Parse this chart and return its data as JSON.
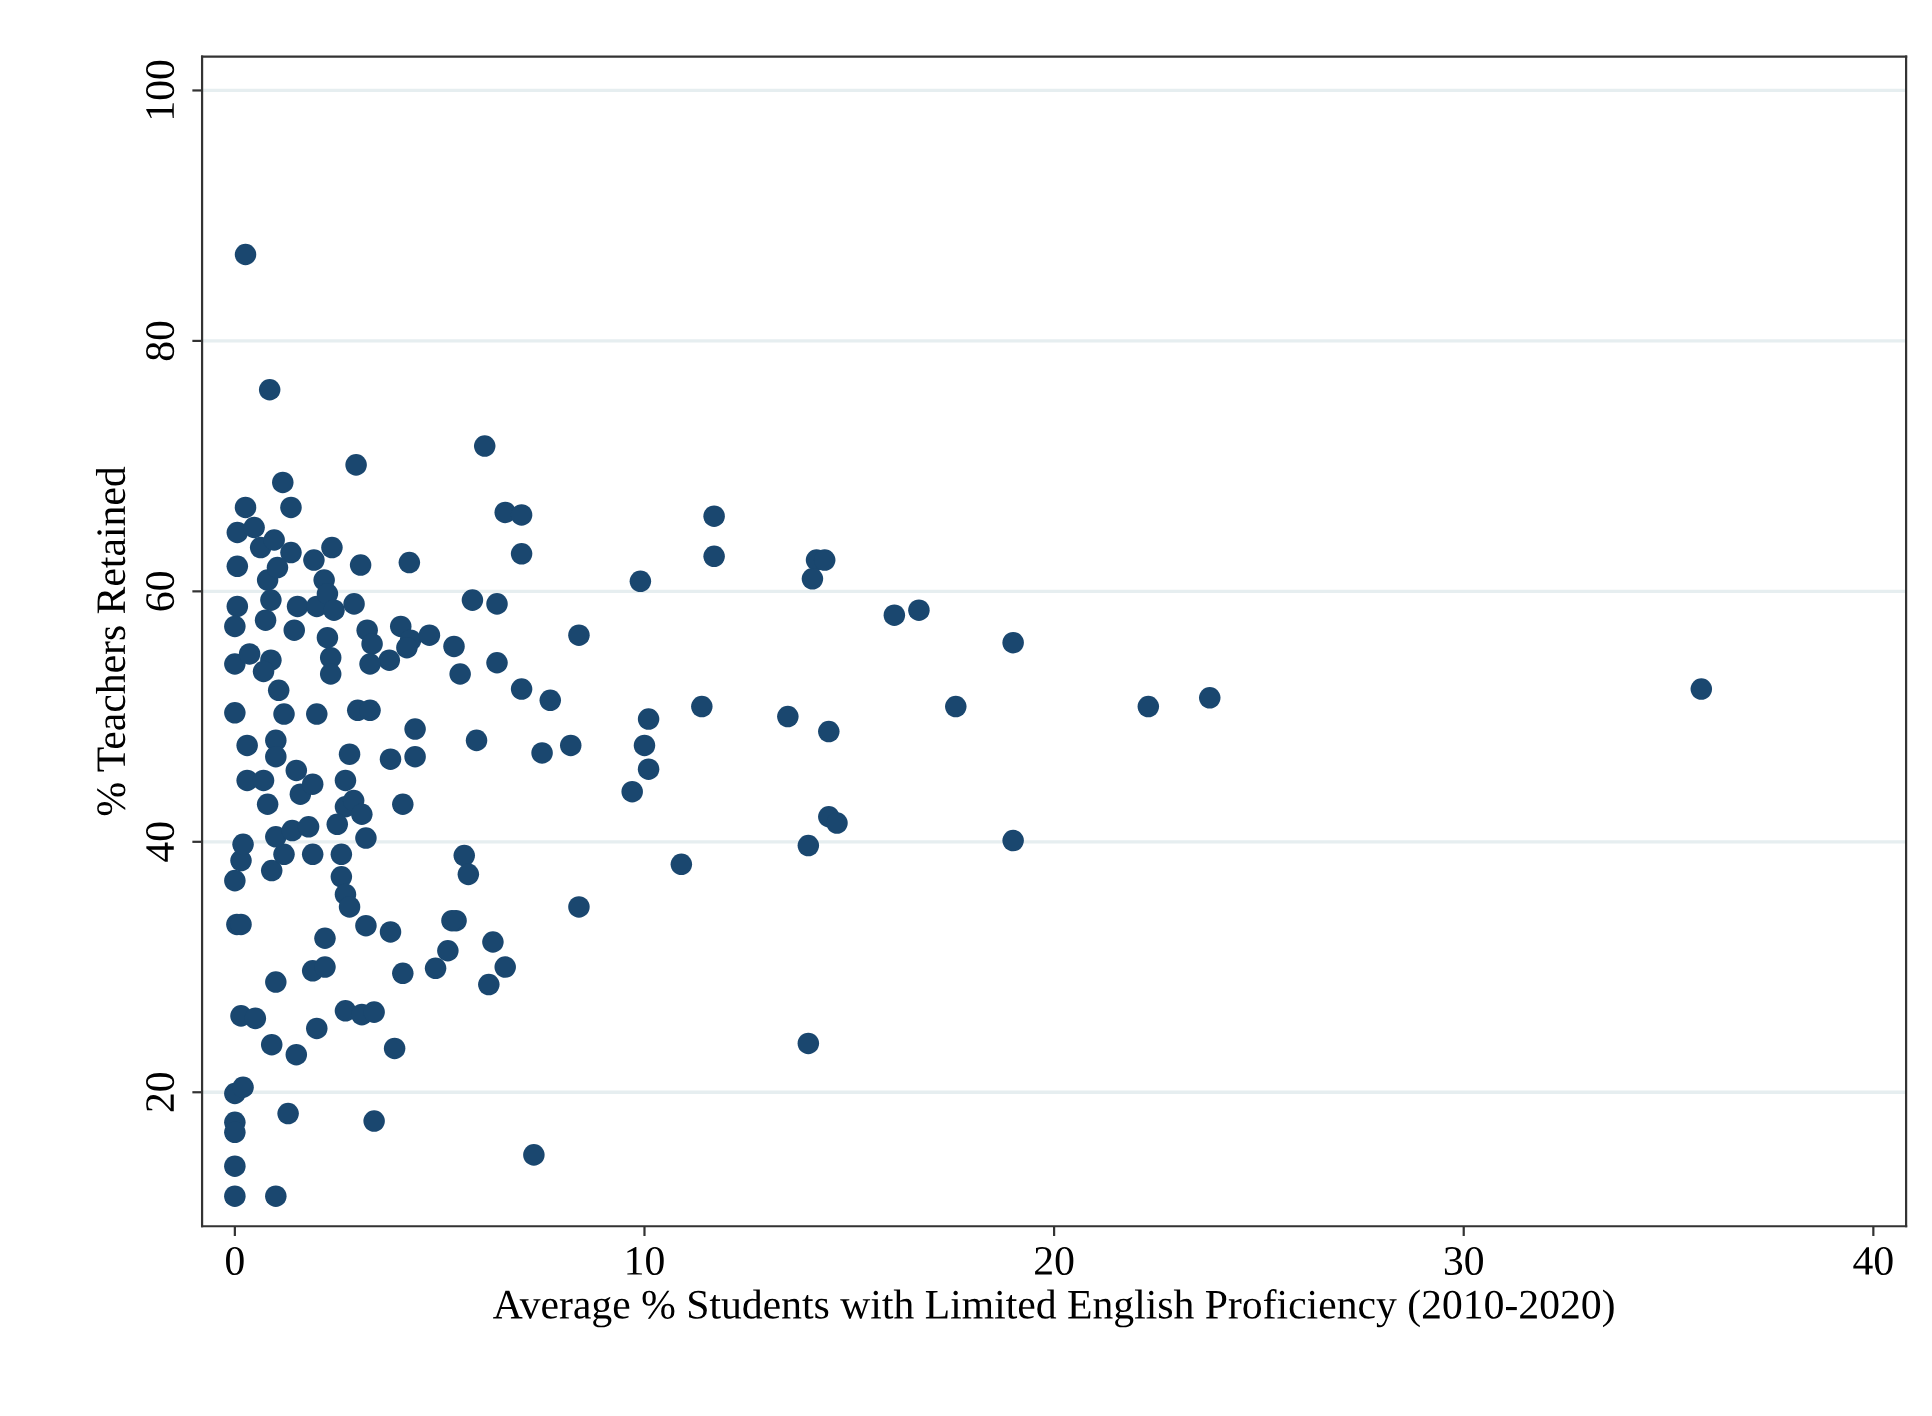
{
  "chart_data": {
    "type": "scatter",
    "xlabel": "Average % Students with Limited English Proficiency (2010-2020)",
    "ylabel": "% Teachers Retained",
    "xlim": [
      -0.8,
      40.8
    ],
    "ylim": [
      9.3,
      102.7
    ],
    "xticks": [
      0,
      10,
      20,
      30,
      40
    ],
    "yticks": [
      20,
      40,
      60,
      80,
      100
    ],
    "grid": "y",
    "marker": "circle",
    "series": [
      {
        "color": "#1a476f",
        "x": [
          0.26,
          0.85,
          2.96,
          1.17,
          1.37,
          0.26,
          0.06,
          0.47,
          0.63,
          0.96,
          1.37,
          0.06,
          0.8,
          1.04,
          1.93,
          2.37,
          3.07,
          4.26,
          2.18,
          0.88,
          0.06,
          0,
          0.75,
          1.53,
          2.0,
          2.26,
          2.42,
          2.91,
          1.45,
          2.26,
          3.23,
          4.05,
          4.29,
          4.75,
          5.35,
          0,
          0.36,
          0.88,
          0.7,
          1.07,
          2.34,
          3.35,
          3.77,
          4.2,
          2.34,
          3.3,
          5.5,
          0,
          6.1,
          6.6,
          7.0,
          7.0,
          11.7,
          11.7,
          14.2,
          14.4,
          14.1,
          9.9,
          5.8,
          6.4,
          8.4,
          6.4,
          7.0,
          7.7,
          5.9,
          7.5,
          8.2,
          10.1,
          10.0,
          10.1,
          9.7,
          11.4,
          13.5,
          14.5,
          14.5,
          14.7,
          16.1,
          16.7,
          19.0,
          17.6,
          22.3,
          23.8,
          35.8,
          19.0,
          5.6,
          5.7,
          5.4,
          6.3,
          6.6,
          6.2,
          8.4,
          10.9,
          14.0,
          14.0,
          7.3,
          1.2,
          2.0,
          3.0,
          3.3,
          4.4,
          0.3,
          1.0,
          1.0,
          2.8,
          3.8,
          4.4,
          0.3,
          0.7,
          0.8,
          1.5,
          1.6,
          1.9,
          2.7,
          2.7,
          2.9,
          3.1,
          2.5,
          4.1,
          0.15,
          0,
          0.2,
          0.05,
          0.15,
          0.9,
          1.2,
          1.0,
          1.9,
          1.4,
          1.8,
          2.6,
          2.6,
          2.7,
          2.8,
          3.2,
          3.8,
          3.2,
          2.2,
          1.9,
          2.2,
          1.0,
          0.15,
          0.5,
          0.9,
          1.5,
          2.0,
          2.7,
          3.1,
          3.4,
          3.9,
          4.1,
          4.9,
          5.2,
          5.3,
          0,
          0.2,
          0,
          0,
          0,
          0,
          1.0,
          1.3,
          3.4
        ],
        "values": [
          86.9,
          76.1,
          70.1,
          68.7,
          66.7,
          66.7,
          64.7,
          65.1,
          63.5,
          64.1,
          63.1,
          62.0,
          60.9,
          61.9,
          62.5,
          63.5,
          62.1,
          62.3,
          60.9,
          59.3,
          58.8,
          57.2,
          57.7,
          58.8,
          58.8,
          59.8,
          58.5,
          59.0,
          56.9,
          56.3,
          56.9,
          57.2,
          56.1,
          56.5,
          55.6,
          54.2,
          55.0,
          54.5,
          53.6,
          52.1,
          54.7,
          55.8,
          54.5,
          55.5,
          53.4,
          54.2,
          53.4,
          50.3,
          71.6,
          66.3,
          66.1,
          63.0,
          66.0,
          62.8,
          62.5,
          62.5,
          61.0,
          60.8,
          59.3,
          59.0,
          56.5,
          54.3,
          52.2,
          51.3,
          48.1,
          47.1,
          47.7,
          49.8,
          47.7,
          45.8,
          44.0,
          50.8,
          50.0,
          48.8,
          42.0,
          41.5,
          58.1,
          58.5,
          55.9,
          50.8,
          50.8,
          51.5,
          52.2,
          40.1,
          38.9,
          37.4,
          33.7,
          32.0,
          30.0,
          28.6,
          34.8,
          38.2,
          39.7,
          23.9,
          15.0,
          50.2,
          50.2,
          50.5,
          50.5,
          49.0,
          47.7,
          48.1,
          46.8,
          47.0,
          46.6,
          46.8,
          44.9,
          44.9,
          43.0,
          45.7,
          43.8,
          44.6,
          44.9,
          42.8,
          43.3,
          42.2,
          41.4,
          43.0,
          38.5,
          36.9,
          39.8,
          33.4,
          33.4,
          37.7,
          39.0,
          40.4,
          39.0,
          40.9,
          41.2,
          39.0,
          37.2,
          35.8,
          34.8,
          33.3,
          32.8,
          40.3,
          32.3,
          29.7,
          30.0,
          28.8,
          26.1,
          25.9,
          23.8,
          23.0,
          25.1,
          26.5,
          26.2,
          26.4,
          23.5,
          29.5,
          29.9,
          31.3,
          33.7,
          19.9,
          20.4,
          17.6,
          16.8,
          14.1,
          11.7,
          11.7,
          18.3,
          17.7
        ]
      }
    ]
  }
}
